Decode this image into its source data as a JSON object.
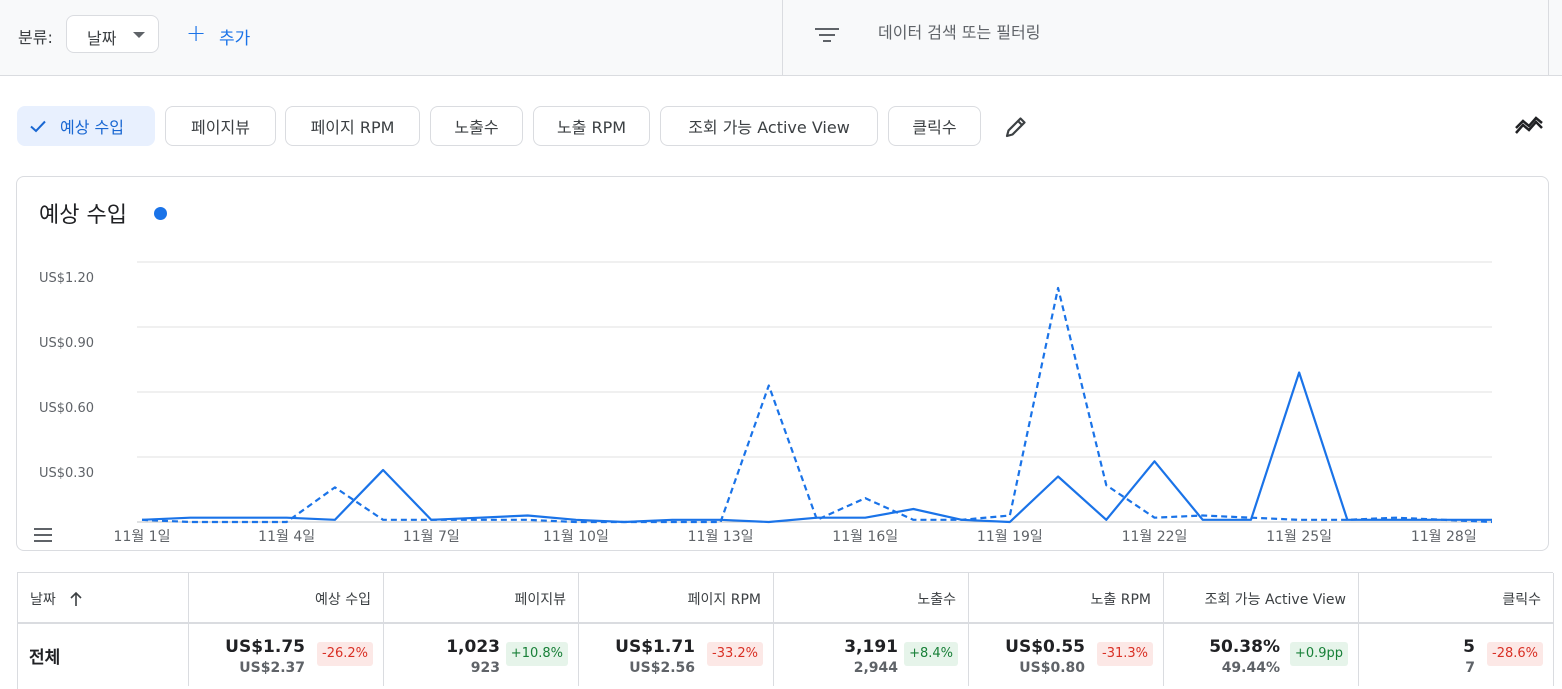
{
  "toolbar": {
    "group_label": "분류:",
    "group_value": "날짜",
    "add_label": "추가",
    "search_placeholder": "데이터 검색 또는 필터링"
  },
  "metric_chips": [
    {
      "label": "예상 수입",
      "selected": true
    },
    {
      "label": "페이지뷰",
      "selected": false
    },
    {
      "label": "페이지 RPM",
      "selected": false
    },
    {
      "label": "노출수",
      "selected": false
    },
    {
      "label": "노출 RPM",
      "selected": false
    },
    {
      "label": "조회 가능 Active View",
      "selected": false
    },
    {
      "label": "클릭수",
      "selected": false
    }
  ],
  "icons": {
    "selected_chip": "check-icon",
    "edit": "pencil-icon",
    "compare": "compare-trend-icon",
    "filter": "filter-icon",
    "legend_menu": "menu-icon",
    "sort": "arrow-up-icon"
  },
  "colors": {
    "accent": "#1a73e8",
    "chip_selected_bg": "#e8f0fe",
    "negative": "#d93025",
    "negative_bg": "#fce8e6",
    "positive": "#188038",
    "positive_bg": "#e6f4ea"
  },
  "chart_data": {
    "type": "line",
    "title": "예상 수입",
    "ylim": [
      0,
      1.2
    ],
    "y_ticks": [
      "US$1.20",
      "US$0.90",
      "US$0.60",
      "US$0.30"
    ],
    "x_tick_labels": [
      "11월 1일",
      "11월 4일",
      "11월 7일",
      "11월 10일",
      "11월 13일",
      "11월 16일",
      "11월 19일",
      "11월 22일",
      "11월 25일",
      "11월 28일"
    ],
    "x_days": [
      1,
      2,
      3,
      4,
      5,
      6,
      7,
      8,
      9,
      10,
      11,
      12,
      13,
      14,
      15,
      16,
      17,
      18,
      19,
      20,
      21,
      22,
      23,
      24,
      25,
      26,
      27,
      28,
      29
    ],
    "grid": true,
    "series": [
      {
        "style": "solid",
        "values": [
          0.01,
          0.02,
          0.02,
          0.02,
          0.01,
          0.24,
          0.01,
          0.02,
          0.03,
          0.01,
          0.0,
          0.01,
          0.01,
          0.0,
          0.02,
          0.02,
          0.06,
          0.01,
          0.0,
          0.21,
          0.01,
          0.28,
          0.01,
          0.01,
          0.69,
          0.01,
          0.01,
          0.01,
          0.01
        ]
      },
      {
        "style": "dashed",
        "values": [
          0.01,
          0.0,
          0.0,
          0.0,
          0.16,
          0.01,
          0.01,
          0.01,
          0.01,
          0.0,
          0.0,
          0.0,
          0.0,
          0.63,
          0.01,
          0.11,
          0.01,
          0.01,
          0.03,
          1.08,
          0.17,
          0.02,
          0.03,
          0.02,
          0.01,
          0.01,
          0.02,
          0.01,
          0.0
        ]
      }
    ]
  },
  "table": {
    "headers": [
      "날짜",
      "예상 수입",
      "페이지뷰",
      "페이지 RPM",
      "노출수",
      "노출 RPM",
      "조회 가능 Active View",
      "클릭수"
    ],
    "total_row": {
      "label": "전체",
      "cells": [
        {
          "value": "US$1.75",
          "previous": "US$2.37",
          "change": "-26.2%",
          "trend": "neg"
        },
        {
          "value": "1,023",
          "previous": "923",
          "change": "+10.8%",
          "trend": "pos"
        },
        {
          "value": "US$1.71",
          "previous": "US$2.56",
          "change": "-33.2%",
          "trend": "neg"
        },
        {
          "value": "3,191",
          "previous": "2,944",
          "change": "+8.4%",
          "trend": "pos"
        },
        {
          "value": "US$0.55",
          "previous": "US$0.80",
          "change": "-31.3%",
          "trend": "neg"
        },
        {
          "value": "50.38%",
          "previous": "49.44%",
          "change": "+0.9pp",
          "trend": "pos"
        },
        {
          "value": "5",
          "previous": "7",
          "change": "-28.6%",
          "trend": "neg"
        }
      ]
    }
  }
}
